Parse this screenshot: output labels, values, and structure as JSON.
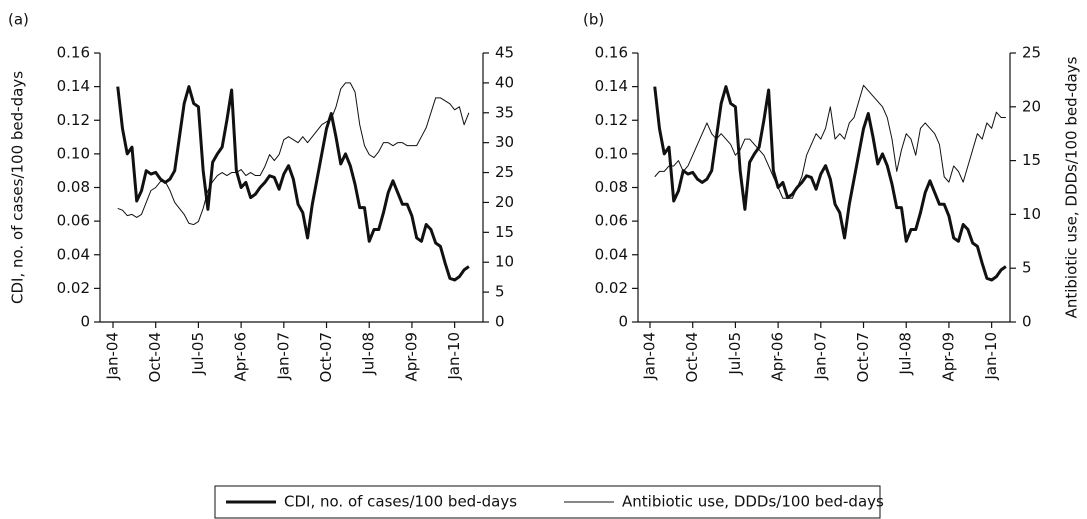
{
  "chart_data": [
    {
      "type": "line",
      "panel_label": "(a)",
      "ylabel": "CDI, no. of cases/100 bed-days",
      "x": [
        "Jan-04",
        "Feb-04",
        "Mar-04",
        "Apr-04",
        "May-04",
        "Jun-04",
        "Jul-04",
        "Aug-04",
        "Sep-04",
        "Oct-04",
        "Nov-04",
        "Dec-04",
        "Jan-05",
        "Feb-05",
        "Mar-05",
        "Apr-05",
        "May-05",
        "Jun-05",
        "Jul-05",
        "Aug-05",
        "Sep-05",
        "Oct-05",
        "Nov-05",
        "Dec-05",
        "Jan-06",
        "Feb-06",
        "Mar-06",
        "Apr-06",
        "May-06",
        "Jun-06",
        "Jul-06",
        "Aug-06",
        "Sep-06",
        "Oct-06",
        "Nov-06",
        "Dec-06",
        "Jan-07",
        "Feb-07",
        "Mar-07",
        "Apr-07",
        "May-07",
        "Jun-07",
        "Jul-07",
        "Aug-07",
        "Sep-07",
        "Oct-07",
        "Nov-07",
        "Dec-07",
        "Jan-08",
        "Feb-08",
        "Mar-08",
        "Apr-08",
        "May-08",
        "Jun-08",
        "Jul-08",
        "Aug-08",
        "Sep-08",
        "Oct-08",
        "Nov-08",
        "Dec-08",
        "Jan-09",
        "Feb-09",
        "Mar-09",
        "Apr-09",
        "May-09",
        "Jun-09",
        "Jul-09",
        "Aug-09",
        "Sep-09",
        "Oct-09",
        "Nov-09",
        "Dec-09",
        "Jan-10",
        "Feb-10",
        "Mar-10",
        "Apr-10"
      ],
      "xticks": [
        "Jan-04",
        "Oct-04",
        "Jul-05",
        "Apr-06",
        "Jan-07",
        "Oct-07",
        "Jul-08",
        "Apr-09",
        "Jan-10"
      ],
      "ylim": [
        0,
        0.16
      ],
      "yticks": [
        0,
        0.02,
        0.04,
        0.06,
        0.08,
        {
          "value": 0.1,
          "label": "0.10"
        },
        0.12,
        0.14,
        0.16
      ],
      "y2lim": [
        0,
        45
      ],
      "y2ticks": [
        0,
        5,
        10,
        15,
        20,
        25,
        30,
        35,
        40,
        45
      ],
      "series": [
        {
          "name": "CDI, no. of cases/100 bed-days",
          "color": "#111111",
          "line_width": 3,
          "values": [
            null,
            0.14,
            0.115,
            0.1,
            0.104,
            0.072,
            0.078,
            0.09,
            0.088,
            0.089,
            0.085,
            0.083,
            0.085,
            0.09,
            0.11,
            0.13,
            0.14,
            0.13,
            0.128,
            0.09,
            0.067,
            0.095,
            0.1,
            0.104,
            0.12,
            0.138,
            0.09,
            0.08,
            0.083,
            0.074,
            0.076,
            0.08,
            0.083,
            0.087,
            0.086,
            0.079,
            0.088,
            0.093,
            0.085,
            0.07,
            0.065,
            0.05,
            0.07,
            0.085,
            0.1,
            0.115,
            0.124,
            0.11,
            0.094,
            0.1,
            0.093,
            0.082,
            0.068,
            0.068,
            0.048,
            0.055,
            0.055,
            0.065,
            0.077,
            0.084,
            0.077,
            0.07,
            0.07,
            0.063,
            0.05,
            0.048,
            0.058,
            0.055,
            0.047,
            0.045,
            0.035,
            0.026,
            0.025,
            0.027,
            0.031,
            0.033
          ]
        },
        {
          "name": "Antibiotic use, DDDs/100 bed-days",
          "color": "#111111",
          "line_width": 1,
          "axis": "y2",
          "values": [
            null,
            19,
            18.7,
            17.8,
            18,
            17.5,
            18,
            20,
            22,
            22.5,
            23.5,
            23.5,
            22,
            20,
            19,
            18,
            16.5,
            16.3,
            16.8,
            19,
            22,
            23.5,
            24.5,
            25,
            24.5,
            25,
            25,
            25.5,
            24.5,
            25,
            24.5,
            24.5,
            26,
            28,
            27,
            28,
            30.5,
            31,
            30.5,
            30,
            31,
            30,
            31,
            32,
            33,
            33.5,
            34,
            36,
            39,
            40,
            40,
            38.5,
            33,
            29.5,
            28,
            27.5,
            28.5,
            30,
            30,
            29.5,
            30,
            30,
            29.5,
            29.5,
            29.5,
            31,
            32.5,
            35,
            37.5,
            37.5,
            37,
            36.5,
            35.5,
            36,
            33,
            35
          ]
        }
      ]
    },
    {
      "type": "line",
      "panel_label": "(b)",
      "y2label": "Antibiotic use, DDDs/100 bed-days",
      "x": [
        "Jan-04",
        "Feb-04",
        "Mar-04",
        "Apr-04",
        "May-04",
        "Jun-04",
        "Jul-04",
        "Aug-04",
        "Sep-04",
        "Oct-04",
        "Nov-04",
        "Dec-04",
        "Jan-05",
        "Feb-05",
        "Mar-05",
        "Apr-05",
        "May-05",
        "Jun-05",
        "Jul-05",
        "Aug-05",
        "Sep-05",
        "Oct-05",
        "Nov-05",
        "Dec-05",
        "Jan-06",
        "Feb-06",
        "Mar-06",
        "Apr-06",
        "May-06",
        "Jun-06",
        "Jul-06",
        "Aug-06",
        "Sep-06",
        "Oct-06",
        "Nov-06",
        "Dec-06",
        "Jan-07",
        "Feb-07",
        "Mar-07",
        "Apr-07",
        "May-07",
        "Jun-07",
        "Jul-07",
        "Aug-07",
        "Sep-07",
        "Oct-07",
        "Nov-07",
        "Dec-07",
        "Jan-08",
        "Feb-08",
        "Mar-08",
        "Apr-08",
        "May-08",
        "Jun-08",
        "Jul-08",
        "Aug-08",
        "Sep-08",
        "Oct-08",
        "Nov-08",
        "Dec-08",
        "Jan-09",
        "Feb-09",
        "Mar-09",
        "Apr-09",
        "May-09",
        "Jun-09",
        "Jul-09",
        "Aug-09",
        "Sep-09",
        "Oct-09",
        "Nov-09",
        "Dec-09",
        "Jan-10",
        "Feb-10",
        "Mar-10",
        "Apr-10"
      ],
      "xticks": [
        "Jan-04",
        "Oct-04",
        "Jul-05",
        "Apr-06",
        "Jan-07",
        "Oct-07",
        "Jul-08",
        "Apr-09",
        "Jan-10"
      ],
      "ylim": [
        0,
        0.16
      ],
      "yticks": [
        0,
        0.02,
        0.04,
        0.06,
        0.08,
        {
          "value": 0.1,
          "label": "0.10"
        },
        0.12,
        0.14,
        0.16
      ],
      "y2lim": [
        0,
        25
      ],
      "y2ticks": [
        0,
        5,
        10,
        15,
        20,
        25
      ],
      "series": [
        {
          "color": "#111111",
          "line_width": 3,
          "values": [
            null,
            0.14,
            0.115,
            0.1,
            0.104,
            0.072,
            0.078,
            0.09,
            0.088,
            0.089,
            0.085,
            0.083,
            0.085,
            0.09,
            0.11,
            0.13,
            0.14,
            0.13,
            0.128,
            0.09,
            0.067,
            0.095,
            0.1,
            0.104,
            0.12,
            0.138,
            0.09,
            0.08,
            0.083,
            0.074,
            0.076,
            0.08,
            0.083,
            0.087,
            0.086,
            0.079,
            0.088,
            0.093,
            0.085,
            0.07,
            0.065,
            0.05,
            0.07,
            0.085,
            0.1,
            0.115,
            0.124,
            0.11,
            0.094,
            0.1,
            0.093,
            0.082,
            0.068,
            0.068,
            0.048,
            0.055,
            0.055,
            0.065,
            0.077,
            0.084,
            0.077,
            0.07,
            0.07,
            0.063,
            0.05,
            0.048,
            0.058,
            0.055,
            0.047,
            0.045,
            0.035,
            0.026,
            0.025,
            0.027,
            0.031,
            0.033
          ]
        },
        {
          "color": "#111111",
          "line_width": 1,
          "axis": "y2",
          "values": [
            null,
            13.5,
            14,
            14,
            14.5,
            14.5,
            15,
            14,
            14.5,
            15.5,
            16.5,
            17.5,
            18.5,
            17.5,
            17,
            17.5,
            17,
            16.5,
            15.5,
            16,
            17,
            17,
            16.5,
            16,
            15.5,
            14.5,
            13.5,
            12.5,
            11.5,
            11.5,
            11.5,
            12.5,
            13.5,
            15.5,
            16.5,
            17.5,
            17,
            18,
            20,
            17,
            17.5,
            17,
            18.5,
            19,
            20.5,
            22,
            21.5,
            21,
            20.5,
            20,
            19,
            17,
            14,
            16,
            17.5,
            17,
            15.5,
            18,
            18.5,
            18,
            17.5,
            16.5,
            13.5,
            13,
            14.5,
            14,
            13,
            14.5,
            16,
            17.5,
            17,
            18.5,
            18,
            19.5,
            19,
            19
          ]
        }
      ]
    }
  ]
}
